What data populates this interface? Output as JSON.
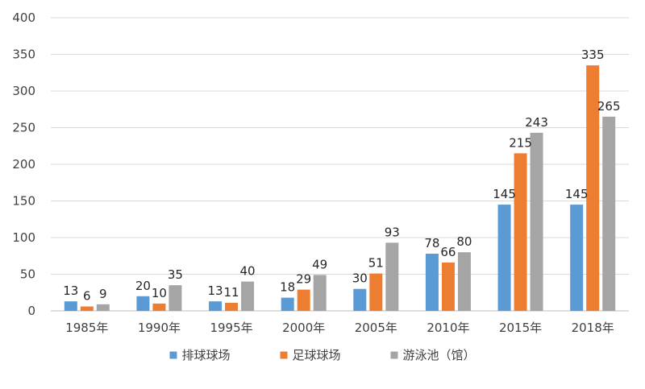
{
  "chart_data": {
    "type": "bar",
    "title": "",
    "xlabel": "",
    "ylabel": "",
    "categories": [
      "1985年",
      "1990年",
      "1995年",
      "2000年",
      "2005年",
      "2010年",
      "2015年",
      "2018年"
    ],
    "series": [
      {
        "name": "排球球场",
        "color": "#5b9bd5",
        "values": [
          13,
          20,
          13,
          18,
          30,
          78,
          145,
          145
        ]
      },
      {
        "name": "足球球场",
        "color": "#ed7d31",
        "values": [
          6,
          10,
          11,
          29,
          51,
          66,
          215,
          335
        ]
      },
      {
        "name": "游泳池（馆）",
        "color": "#a5a5a5",
        "values": [
          9,
          35,
          40,
          49,
          93,
          80,
          243,
          265
        ]
      }
    ],
    "ylim": [
      0,
      400
    ],
    "yticks": [
      0,
      50,
      100,
      150,
      200,
      250,
      300,
      350,
      400
    ],
    "grid": true,
    "legend_position": "bottom",
    "data_labels": true
  }
}
